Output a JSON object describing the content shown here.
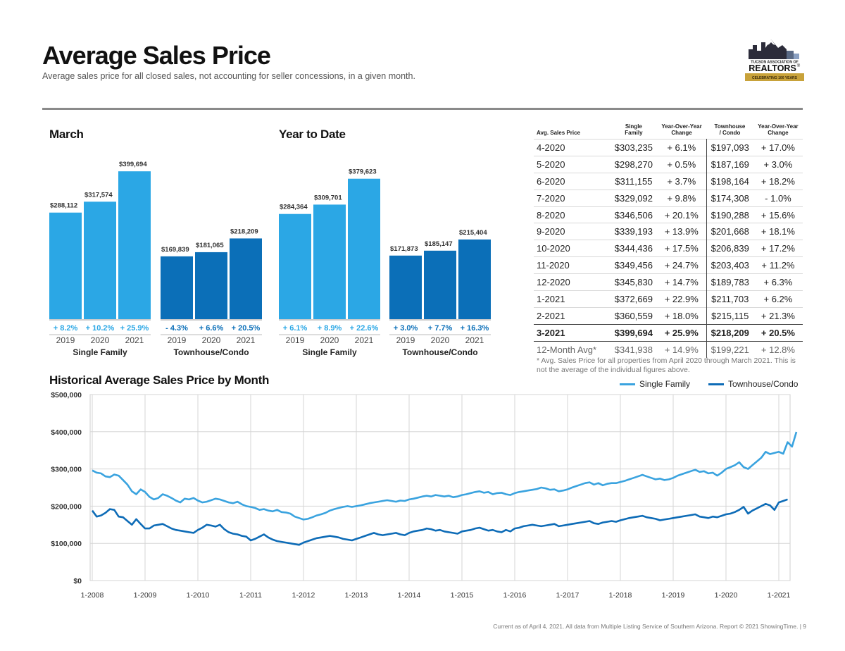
{
  "header": {
    "title": "Average Sales Price",
    "subtitle": "Average sales price for all closed sales, not accounting for seller concessions, in a given month."
  },
  "logo": {
    "line1": "TUCSON ASSOCIATION OF",
    "line2": "REALTORS",
    "reg": "®",
    "banner": "CELEBRATING 100 YEARS"
  },
  "colors": {
    "single_family": "#2ba7e5",
    "townhouse": "#0b6fb8",
    "sf_line": "#3aa3df",
    "th_line": "#0e6cb7"
  },
  "chart_data": [
    {
      "type": "bar",
      "title": "March",
      "group_labels": [
        "Single Family",
        "Townhouse/Condo"
      ],
      "categories": [
        "2019",
        "2020",
        "2021"
      ],
      "series": [
        {
          "name": "Single Family",
          "values": [
            288112,
            317574,
            399694
          ],
          "labels": [
            "$288,112",
            "$317,574",
            "$399,694"
          ],
          "changes": [
            "+ 8.2%",
            "+ 10.2%",
            "+ 25.9%"
          ]
        },
        {
          "name": "Townhouse/Condo",
          "values": [
            169839,
            181065,
            218209
          ],
          "labels": [
            "$169,839",
            "$181,065",
            "$218,209"
          ],
          "changes": [
            "- 4.3%",
            "+ 6.6%",
            "+ 20.5%"
          ]
        }
      ]
    },
    {
      "type": "bar",
      "title": "Year to Date",
      "group_labels": [
        "Single Family",
        "Townhouse/Condo"
      ],
      "categories": [
        "2019",
        "2020",
        "2021"
      ],
      "series": [
        {
          "name": "Single Family",
          "values": [
            284364,
            309701,
            379623
          ],
          "labels": [
            "$284,364",
            "$309,701",
            "$379,623"
          ],
          "changes": [
            "+ 6.1%",
            "+ 8.9%",
            "+ 22.6%"
          ]
        },
        {
          "name": "Townhouse/Condo",
          "values": [
            171873,
            185147,
            215404
          ],
          "labels": [
            "$171,873",
            "$185,147",
            "$215,404"
          ],
          "changes": [
            "+ 3.0%",
            "+ 7.7%",
            "+ 16.3%"
          ]
        }
      ]
    },
    {
      "type": "line",
      "title": "Historical Average Sales Price by Month",
      "x_ticks": [
        "1-2008",
        "1-2009",
        "1-2010",
        "1-2011",
        "1-2012",
        "1-2013",
        "1-2014",
        "1-2015",
        "1-2016",
        "1-2017",
        "1-2018",
        "1-2019",
        "1-2020",
        "1-2021"
      ],
      "y_ticks": [
        "$0",
        "$100,000",
        "$200,000",
        "$300,000",
        "$400,000",
        "$500,000"
      ],
      "ylim": [
        0,
        500000
      ],
      "grid": true,
      "legend_position": "top-right",
      "series": [
        {
          "name": "Single Family",
          "x_start": "1-2008",
          "frequency": "monthly",
          "values": [
            296000,
            290000,
            288000,
            280000,
            278000,
            285000,
            282000,
            270000,
            258000,
            240000,
            232000,
            245000,
            238000,
            225000,
            218000,
            222000,
            232000,
            228000,
            222000,
            215000,
            210000,
            220000,
            218000,
            222000,
            215000,
            210000,
            212000,
            216000,
            220000,
            218000,
            214000,
            210000,
            208000,
            212000,
            205000,
            200000,
            198000,
            195000,
            190000,
            192000,
            188000,
            186000,
            190000,
            184000,
            183000,
            180000,
            172000,
            168000,
            164000,
            166000,
            170000,
            175000,
            178000,
            182000,
            188000,
            192000,
            195000,
            198000,
            200000,
            198000,
            200000,
            202000,
            205000,
            208000,
            210000,
            212000,
            214000,
            216000,
            214000,
            212000,
            215000,
            214000,
            218000,
            220000,
            223000,
            226000,
            228000,
            226000,
            230000,
            228000,
            226000,
            228000,
            224000,
            226000,
            230000,
            232000,
            235000,
            238000,
            240000,
            236000,
            238000,
            232000,
            235000,
            236000,
            232000,
            230000,
            235000,
            238000,
            240000,
            242000,
            244000,
            246000,
            250000,
            248000,
            244000,
            245000,
            240000,
            242000,
            245000,
            250000,
            254000,
            258000,
            262000,
            264000,
            258000,
            262000,
            256000,
            260000,
            262000,
            262000,
            265000,
            268000,
            272000,
            276000,
            280000,
            284000,
            280000,
            276000,
            272000,
            274000,
            270000,
            272000,
            276000,
            282000,
            286000,
            290000,
            294000,
            298000,
            292000,
            294000,
            288000,
            290000,
            282000,
            290000,
            300000,
            305000,
            310000,
            318000,
            305000,
            300000,
            310000,
            320000,
            330000,
            346000,
            340000,
            343000,
            346000,
            341000,
            372000,
            360000,
            399694
          ]
        },
        {
          "name": "Townhouse/Condo",
          "x_start": "1-2008",
          "frequency": "monthly",
          "values": [
            188000,
            172000,
            175000,
            182000,
            192000,
            190000,
            172000,
            170000,
            160000,
            150000,
            165000,
            152000,
            140000,
            140000,
            148000,
            150000,
            152000,
            146000,
            140000,
            136000,
            134000,
            132000,
            130000,
            128000,
            136000,
            142000,
            150000,
            148000,
            145000,
            150000,
            138000,
            130000,
            126000,
            124000,
            120000,
            118000,
            108000,
            112000,
            118000,
            124000,
            116000,
            110000,
            106000,
            104000,
            102000,
            100000,
            98000,
            96000,
            102000,
            106000,
            110000,
            114000,
            116000,
            118000,
            120000,
            118000,
            116000,
            112000,
            110000,
            108000,
            112000,
            116000,
            120000,
            124000,
            128000,
            124000,
            122000,
            124000,
            126000,
            128000,
            124000,
            122000,
            128000,
            132000,
            134000,
            136000,
            140000,
            138000,
            134000,
            136000,
            132000,
            130000,
            128000,
            126000,
            132000,
            134000,
            136000,
            140000,
            142000,
            138000,
            134000,
            136000,
            132000,
            130000,
            136000,
            132000,
            140000,
            142000,
            146000,
            148000,
            150000,
            148000,
            146000,
            148000,
            150000,
            152000,
            146000,
            148000,
            150000,
            152000,
            154000,
            156000,
            158000,
            160000,
            154000,
            152000,
            156000,
            158000,
            160000,
            158000,
            162000,
            165000,
            168000,
            170000,
            172000,
            174000,
            170000,
            168000,
            166000,
            162000,
            164000,
            166000,
            168000,
            170000,
            172000,
            174000,
            176000,
            178000,
            172000,
            170000,
            168000,
            172000,
            170000,
            174000,
            178000,
            180000,
            184000,
            190000,
            198000,
            180000,
            188000,
            194000,
            200000,
            206000,
            202000,
            190000,
            210000,
            214000,
            218209
          ]
        }
      ]
    }
  ],
  "table": {
    "headers": [
      "Avg. Sales Price",
      "Single Family",
      "Year-Over-Year Change",
      "Townhouse / Condo",
      "Year-Over-Year Change"
    ],
    "header_lines": [
      [
        "Avg. Sales Price"
      ],
      [
        "Single",
        "Family"
      ],
      [
        "Year-Over-Year",
        "Change"
      ],
      [
        "Townhouse",
        "/ Condo"
      ],
      [
        "Year-Over-Year",
        "Change"
      ]
    ],
    "rows": [
      [
        "4-2020",
        "$303,235",
        "+ 6.1%",
        "$197,093",
        "+ 17.0%"
      ],
      [
        "5-2020",
        "$298,270",
        "+ 0.5%",
        "$187,169",
        "+ 3.0%"
      ],
      [
        "6-2020",
        "$311,155",
        "+ 3.7%",
        "$198,164",
        "+ 18.2%"
      ],
      [
        "7-2020",
        "$329,092",
        "+ 9.8%",
        "$174,308",
        "- 1.0%"
      ],
      [
        "8-2020",
        "$346,506",
        "+ 20.1%",
        "$190,288",
        "+ 15.6%"
      ],
      [
        "9-2020",
        "$339,193",
        "+ 13.9%",
        "$201,668",
        "+ 18.1%"
      ],
      [
        "10-2020",
        "$344,436",
        "+ 17.5%",
        "$206,839",
        "+ 17.2%"
      ],
      [
        "11-2020",
        "$349,456",
        "+ 24.7%",
        "$203,403",
        "+ 11.2%"
      ],
      [
        "12-2020",
        "$345,830",
        "+ 14.7%",
        "$189,783",
        "+ 6.3%"
      ],
      [
        "1-2021",
        "$372,669",
        "+ 22.9%",
        "$211,703",
        "+ 6.2%"
      ],
      [
        "2-2021",
        "$360,559",
        "+ 18.0%",
        "$215,115",
        "+ 21.3%"
      ],
      [
        "3-2021",
        "$399,694",
        "+ 25.9%",
        "$218,209",
        "+ 20.5%"
      ]
    ],
    "avg_row": [
      "12-Month Avg*",
      "$341,938",
      "+ 14.9%",
      "$199,221",
      "+ 12.8%"
    ],
    "footnote": "* Avg. Sales Price for all properties from April 2020 through March 2021. This is not the average of the individual figures above."
  },
  "footer": "Current as of April 4, 2021. All data from Multiple Listing Service of Southern Arizona. Report © 2021 ShowingTime. | 9"
}
